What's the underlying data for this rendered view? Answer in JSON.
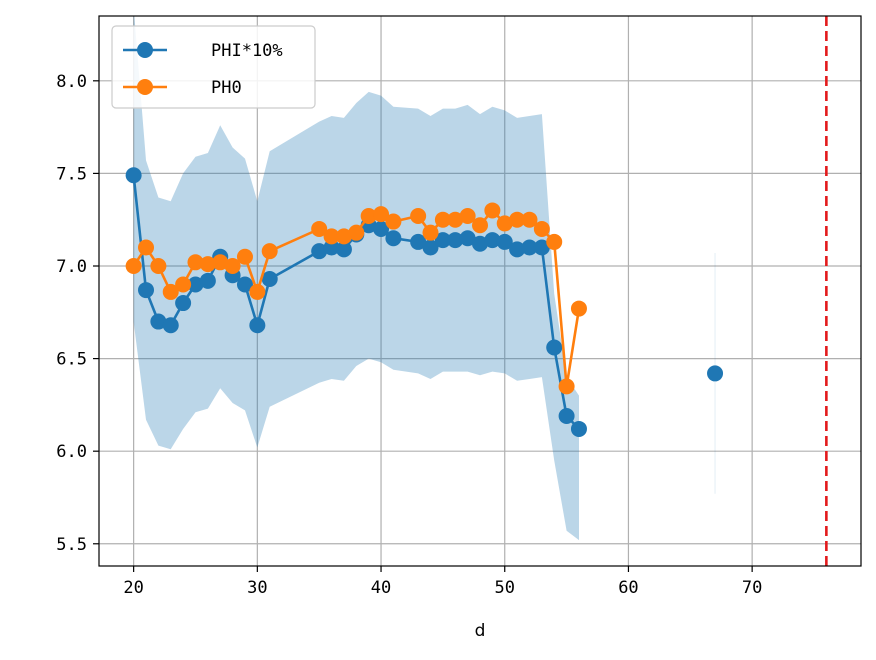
{
  "chart_data": {
    "type": "line",
    "title": "",
    "xlabel": "d",
    "ylabel": "",
    "xlim": [
      17.2,
      78.8
    ],
    "ylim": [
      5.38,
      8.35
    ],
    "xticks": [
      20,
      30,
      40,
      50,
      60,
      70
    ],
    "yticks": [
      5.5,
      6.0,
      6.5,
      7.0,
      7.5,
      8.0
    ],
    "xtick_labels": [
      "20",
      "30",
      "40",
      "50",
      "60",
      "70"
    ],
    "ytick_labels": [
      "5.5",
      "6.0",
      "6.5",
      "7.0",
      "7.5",
      "8.0"
    ],
    "grid": true,
    "legend_position": "upper-left",
    "series": [
      {
        "name": "PHI*10%",
        "color": "#1f77b4",
        "segments": [
          [
            [
              20,
              7.49
            ],
            [
              21,
              6.87
            ],
            [
              22,
              6.7
            ],
            [
              23,
              6.68
            ],
            [
              24,
              6.8
            ],
            [
              25,
              6.9
            ],
            [
              26,
              6.92
            ],
            [
              27,
              7.05
            ],
            [
              28,
              6.95
            ],
            [
              29,
              6.9
            ],
            [
              30,
              6.68
            ],
            [
              31,
              6.93
            ],
            [
              35,
              7.08
            ],
            [
              36,
              7.1
            ],
            [
              37,
              7.09
            ],
            [
              38,
              7.17
            ],
            [
              39,
              7.22
            ],
            [
              40,
              7.2
            ],
            [
              41,
              7.15
            ],
            [
              43,
              7.13
            ],
            [
              44,
              7.1
            ],
            [
              45,
              7.14
            ],
            [
              46,
              7.14
            ],
            [
              47,
              7.15
            ],
            [
              48,
              7.12
            ],
            [
              49,
              7.14
            ],
            [
              50,
              7.13
            ],
            [
              51,
              7.09
            ],
            [
              52,
              7.1
            ],
            [
              53,
              7.1
            ],
            [
              54,
              6.56
            ],
            [
              55,
              6.19
            ],
            [
              56,
              6.12
            ]
          ],
          [
            [
              67,
              6.42
            ]
          ]
        ]
      },
      {
        "name": "PH0",
        "color": "#ff7f0e",
        "segments": [
          [
            [
              20,
              7.0
            ],
            [
              21,
              7.1
            ],
            [
              22,
              7.0
            ],
            [
              23,
              6.86
            ],
            [
              24,
              6.9
            ],
            [
              25,
              7.02
            ],
            [
              26,
              7.01
            ],
            [
              27,
              7.02
            ],
            [
              28,
              7.0
            ],
            [
              29,
              7.05
            ],
            [
              30,
              6.86
            ],
            [
              31,
              7.08
            ],
            [
              35,
              7.2
            ],
            [
              36,
              7.16
            ],
            [
              37,
              7.16
            ],
            [
              38,
              7.18
            ],
            [
              39,
              7.27
            ],
            [
              40,
              7.28
            ],
            [
              41,
              7.24
            ],
            [
              43,
              7.27
            ],
            [
              44,
              7.18
            ],
            [
              45,
              7.25
            ],
            [
              46,
              7.25
            ],
            [
              47,
              7.27
            ],
            [
              48,
              7.22
            ],
            [
              49,
              7.3
            ],
            [
              50,
              7.23
            ],
            [
              51,
              7.25
            ],
            [
              52,
              7.25
            ],
            [
              53,
              7.2
            ],
            [
              54,
              7.13
            ],
            [
              55,
              6.35
            ],
            [
              56,
              6.77
            ]
          ]
        ]
      }
    ],
    "band": {
      "series": "PHI*10%",
      "color": "#1f77b4",
      "opacity": 0.3,
      "x": [
        20,
        21,
        22,
        23,
        24,
        25,
        26,
        27,
        28,
        29,
        30,
        31,
        35,
        36,
        37,
        38,
        39,
        40,
        41,
        43,
        44,
        45,
        46,
        47,
        48,
        49,
        50,
        51,
        52,
        53,
        54,
        55,
        56
      ],
      "upper": [
        8.4,
        7.57,
        7.37,
        7.35,
        7.5,
        7.59,
        7.61,
        7.76,
        7.64,
        7.58,
        7.35,
        7.62,
        7.78,
        7.81,
        7.8,
        7.88,
        7.94,
        7.92,
        7.86,
        7.85,
        7.81,
        7.85,
        7.85,
        7.87,
        7.82,
        7.86,
        7.84,
        7.8,
        7.81,
        7.82,
        6.85,
        6.4,
        6.3
      ],
      "lower": [
        6.7,
        6.17,
        6.03,
        6.01,
        6.12,
        6.21,
        6.23,
        6.34,
        6.26,
        6.22,
        6.02,
        6.24,
        6.37,
        6.39,
        6.38,
        6.46,
        6.5,
        6.48,
        6.44,
        6.42,
        6.39,
        6.43,
        6.43,
        6.43,
        6.41,
        6.43,
        6.42,
        6.38,
        6.39,
        6.4,
        5.95,
        5.57,
        5.52
      ]
    },
    "band2": {
      "x": 67,
      "upper": 7.07,
      "lower": 5.77
    },
    "vline": {
      "x": 76,
      "color": "#e31a1c",
      "style": "dashed"
    }
  }
}
